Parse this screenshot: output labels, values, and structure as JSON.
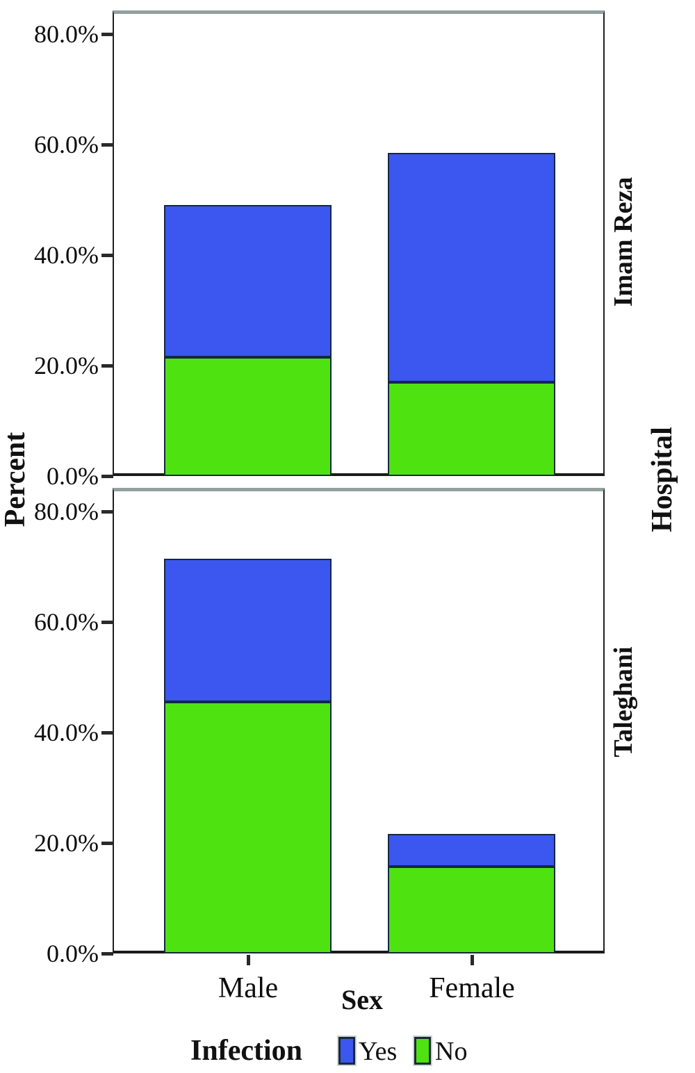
{
  "chart_data": {
    "type": "bar",
    "stacked": true,
    "xlabel": "Sex",
    "ylabel": "Percent",
    "facet_label": "Hospital",
    "categories": [
      "Male",
      "Female"
    ],
    "yticks": [
      {
        "value": 0,
        "label": "0.0%"
      },
      {
        "value": 20,
        "label": "20.0%"
      },
      {
        "value": 40,
        "label": "40.0%"
      },
      {
        "value": 60,
        "label": "60.0%"
      },
      {
        "value": 80,
        "label": "80.0%"
      }
    ],
    "ylim": [
      0,
      84
    ],
    "grid": false,
    "legend_position": "bottom",
    "legend": {
      "title": "Infection",
      "entries": [
        {
          "name": "Yes",
          "color": "#3b57f0"
        },
        {
          "name": "No",
          "color": "#4fe211"
        }
      ]
    },
    "panels": [
      {
        "label": "Imam Reza",
        "series": [
          {
            "name": "No",
            "values": [
              21.5,
              17.0
            ]
          },
          {
            "name": "Yes",
            "values": [
              27.5,
              41.5
            ]
          }
        ]
      },
      {
        "label": "Taleghani",
        "series": [
          {
            "name": "No",
            "values": [
              45.5,
              15.7
            ]
          },
          {
            "name": "Yes",
            "values": [
              26.0,
              5.9
            ]
          }
        ]
      }
    ],
    "colors": {
      "bar_border": "#152740",
      "axis": "#1f1f1f",
      "panel_top_border": "#93a0a0"
    }
  }
}
